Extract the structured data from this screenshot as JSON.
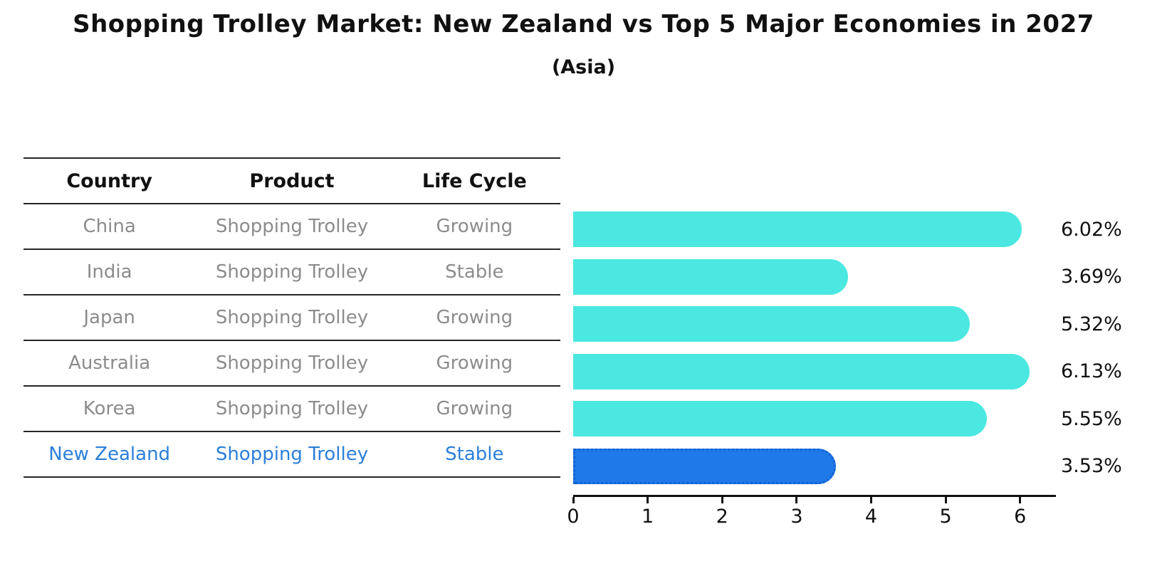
{
  "header": {
    "title": "Shopping Trolley Market: New Zealand vs Top 5 Major Economies in 2027",
    "subtitle": "(Asia)"
  },
  "table": {
    "headers": {
      "country": "Country",
      "product": "Product",
      "life_cycle": "Life Cycle"
    },
    "rows": [
      {
        "country": "China",
        "product": "Shopping Trolley",
        "life_cycle": "Growing",
        "highlighted": false
      },
      {
        "country": "India",
        "product": "Shopping Trolley",
        "life_cycle": "Stable",
        "highlighted": false
      },
      {
        "country": "Japan",
        "product": "Shopping Trolley",
        "life_cycle": "Growing",
        "highlighted": false
      },
      {
        "country": "Australia",
        "product": "Shopping Trolley",
        "life_cycle": "Growing",
        "highlighted": false
      },
      {
        "country": "Korea",
        "product": "Shopping Trolley",
        "life_cycle": "Growing",
        "highlighted": false
      },
      {
        "country": "New Zealand",
        "product": "Shopping Trolley",
        "life_cycle": "Stable",
        "highlighted": true
      }
    ]
  },
  "chart_data": {
    "type": "bar",
    "orientation": "horizontal",
    "title": "Shopping Trolley Market: New Zealand vs Top 5 Major Economies in 2027",
    "subtitle": "(Asia)",
    "categories": [
      "China",
      "India",
      "Japan",
      "Australia",
      "Korea",
      "New Zealand"
    ],
    "values": [
      6.02,
      3.69,
      5.32,
      6.13,
      5.55,
      3.53
    ],
    "value_labels": [
      "6.02%",
      "3.69%",
      "5.32%",
      "6.13%",
      "5.55%",
      "3.53%"
    ],
    "xticks": [
      "0",
      "1",
      "2",
      "3",
      "4",
      "5",
      "6"
    ],
    "xlim": [
      0,
      6.48
    ],
    "grid": false,
    "legend": false,
    "bar_color": "#4BE8E1",
    "highlight_color": "#2079E8",
    "highlight_index": 5
  },
  "colors": {
    "title_text": "#111111",
    "header_text": "#111111",
    "row_text": "#8c8c8c",
    "highlight_text": "#2b7fd9",
    "table_line": "#262626",
    "axis": "#111111"
  }
}
